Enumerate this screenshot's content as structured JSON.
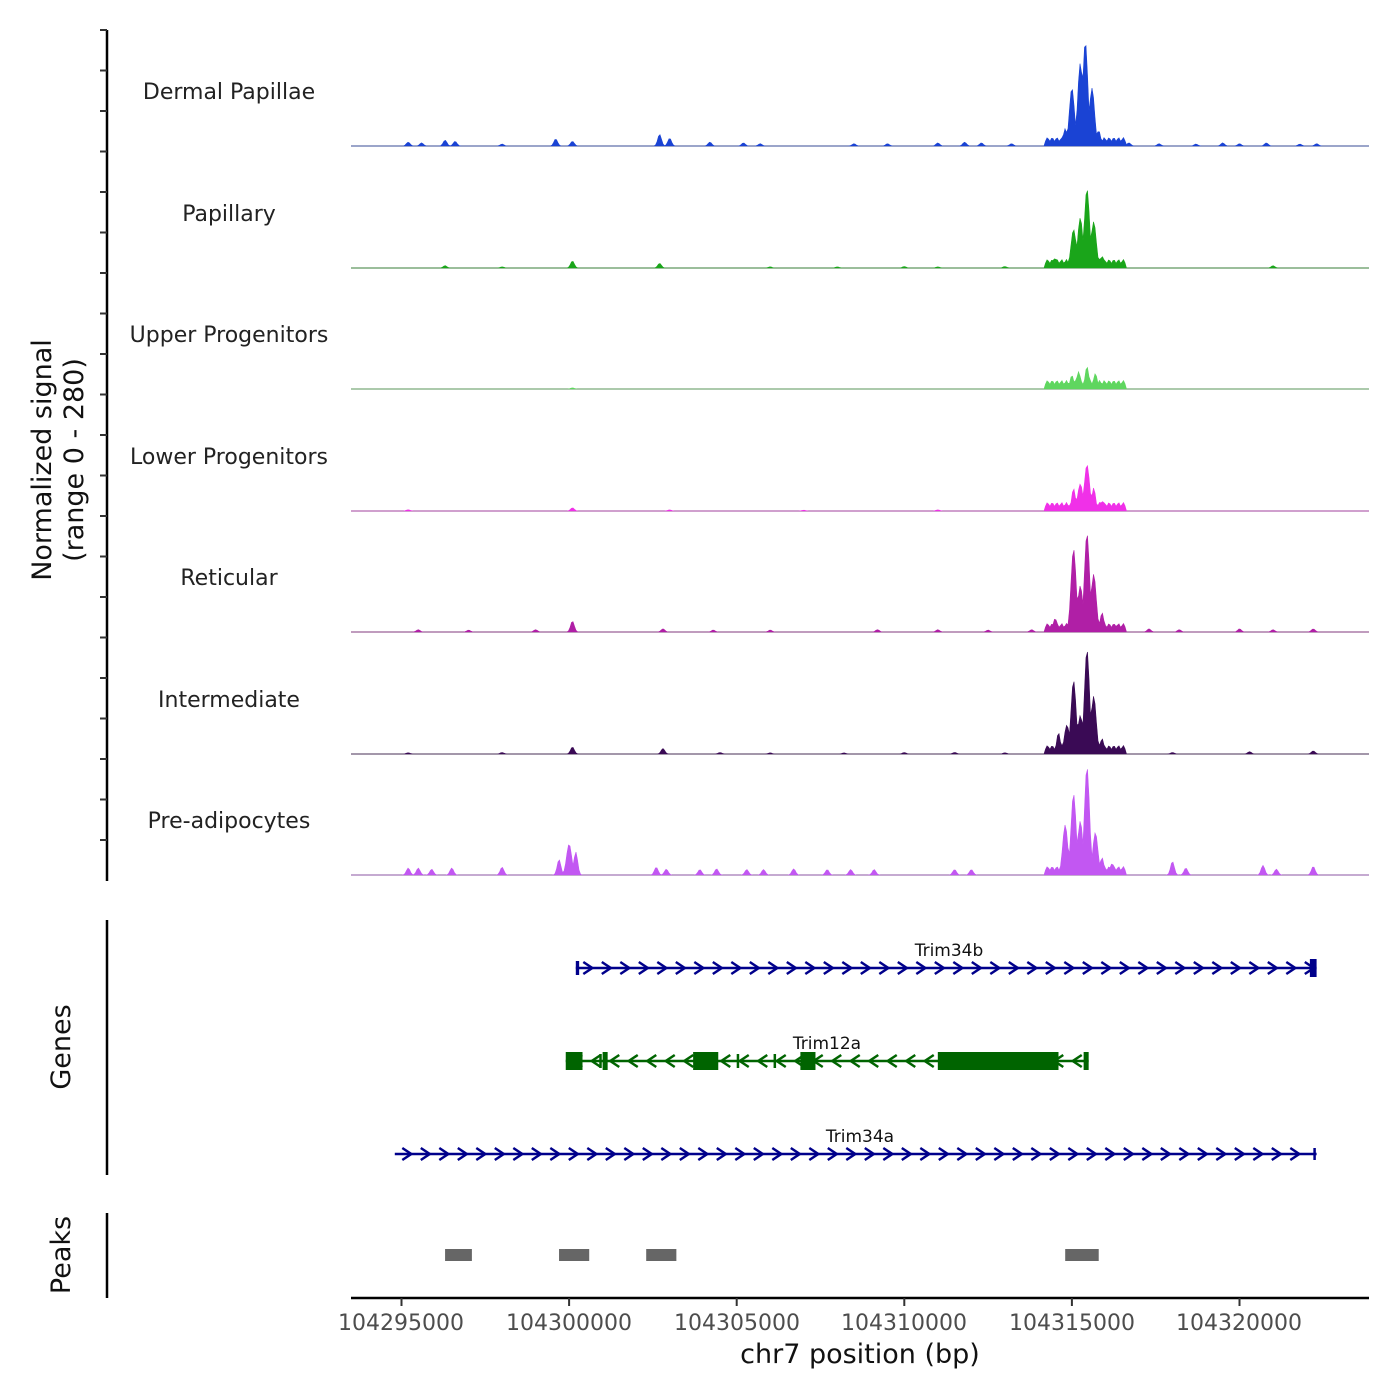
{
  "chart_data": {
    "type": "area",
    "title": "",
    "xlabel": "chr7 position (bp)",
    "ylabel_line1": "Normalized signal",
    "ylabel_line2": "(range 0 - 280)",
    "ylim": [
      0,
      280
    ],
    "xlim": [
      104293500,
      104324000
    ],
    "xticks": [
      104295000,
      104300000,
      104305000,
      104310000,
      104315000,
      104320000
    ],
    "xtick_labels": [
      "104295000",
      "104300000",
      "104305000",
      "104310000",
      "104315000",
      "104320000"
    ],
    "series": [
      {
        "name": "Dermal Papillae",
        "color": "#1a43d4",
        "peaks": [
          [
            104295200,
            10
          ],
          [
            104295600,
            8
          ],
          [
            104296300,
            15
          ],
          [
            104296600,
            12
          ],
          [
            104298000,
            5
          ],
          [
            104299600,
            18
          ],
          [
            104300100,
            12
          ],
          [
            104302700,
            30
          ],
          [
            104303000,
            20
          ],
          [
            104304200,
            10
          ],
          [
            104305200,
            8
          ],
          [
            104305700,
            6
          ],
          [
            104308500,
            6
          ],
          [
            104309500,
            6
          ],
          [
            104311000,
            8
          ],
          [
            104311800,
            10
          ],
          [
            104312300,
            8
          ],
          [
            104313200,
            6
          ],
          [
            104314300,
            10
          ],
          [
            104314800,
            45
          ],
          [
            104315000,
            150
          ],
          [
            104315250,
            215
          ],
          [
            104315400,
            270
          ],
          [
            104315600,
            150
          ],
          [
            104315800,
            40
          ],
          [
            104316100,
            20
          ],
          [
            104316700,
            8
          ],
          [
            104317600,
            6
          ],
          [
            104318700,
            5
          ],
          [
            104319500,
            8
          ],
          [
            104320000,
            6
          ],
          [
            104320800,
            8
          ],
          [
            104321800,
            5
          ],
          [
            104322300,
            6
          ]
        ]
      },
      {
        "name": "Papillary",
        "color": "#1aa51a",
        "peaks": [
          [
            104296300,
            6
          ],
          [
            104298000,
            3
          ],
          [
            104300100,
            18
          ],
          [
            104302700,
            12
          ],
          [
            104306000,
            3
          ],
          [
            104308000,
            3
          ],
          [
            104310000,
            4
          ],
          [
            104311000,
            3
          ],
          [
            104313000,
            4
          ],
          [
            104314500,
            25
          ],
          [
            104315050,
            100
          ],
          [
            104315250,
            130
          ],
          [
            104315450,
            205
          ],
          [
            104315650,
            120
          ],
          [
            104315900,
            30
          ],
          [
            104316300,
            10
          ],
          [
            104321000,
            6
          ]
        ]
      },
      {
        "name": "Upper Progenitors",
        "color": "#5fd65f",
        "peaks": [
          [
            104300100,
            3
          ],
          [
            104314600,
            8
          ],
          [
            104315000,
            35
          ],
          [
            104315200,
            45
          ],
          [
            104315450,
            58
          ],
          [
            104315700,
            40
          ],
          [
            104316000,
            10
          ],
          [
            104316400,
            4
          ]
        ]
      },
      {
        "name": "Lower Progenitors",
        "color": "#f030e8",
        "peaks": [
          [
            104295200,
            3
          ],
          [
            104300100,
            8
          ],
          [
            104303000,
            3
          ],
          [
            104307000,
            2
          ],
          [
            104311000,
            3
          ],
          [
            104314500,
            10
          ],
          [
            104315050,
            58
          ],
          [
            104315250,
            70
          ],
          [
            104315450,
            120
          ],
          [
            104315650,
            60
          ],
          [
            104315900,
            25
          ],
          [
            104316300,
            8
          ]
        ]
      },
      {
        "name": "Reticular",
        "color": "#b01fa6",
        "peaks": [
          [
            104295500,
            6
          ],
          [
            104297000,
            5
          ],
          [
            104299000,
            6
          ],
          [
            104300100,
            28
          ],
          [
            104302800,
            8
          ],
          [
            104304300,
            5
          ],
          [
            104306000,
            5
          ],
          [
            104309200,
            6
          ],
          [
            104311000,
            6
          ],
          [
            104312500,
            5
          ],
          [
            104313800,
            6
          ],
          [
            104314500,
            35
          ],
          [
            104315050,
            215
          ],
          [
            104315250,
            120
          ],
          [
            104315450,
            255
          ],
          [
            104315650,
            150
          ],
          [
            104315900,
            50
          ],
          [
            104316300,
            15
          ],
          [
            104317300,
            8
          ],
          [
            104318200,
            6
          ],
          [
            104320000,
            8
          ],
          [
            104321000,
            6
          ],
          [
            104322200,
            8
          ]
        ]
      },
      {
        "name": "Intermediate",
        "color": "#3a0a55",
        "peaks": [
          [
            104295200,
            3
          ],
          [
            104298000,
            4
          ],
          [
            104300100,
            18
          ],
          [
            104302800,
            14
          ],
          [
            104304500,
            4
          ],
          [
            104306000,
            3
          ],
          [
            104308200,
            3
          ],
          [
            104310000,
            4
          ],
          [
            104311500,
            4
          ],
          [
            104313000,
            3
          ],
          [
            104314600,
            55
          ],
          [
            104314850,
            75
          ],
          [
            104315050,
            190
          ],
          [
            104315250,
            100
          ],
          [
            104315450,
            270
          ],
          [
            104315650,
            150
          ],
          [
            104315900,
            40
          ],
          [
            104316300,
            10
          ],
          [
            104318000,
            4
          ],
          [
            104320300,
            6
          ],
          [
            104322200,
            8
          ]
        ]
      },
      {
        "name": "Pre-adipocytes",
        "color": "#c257f2",
        "peaks": [
          [
            104295200,
            18
          ],
          [
            104295500,
            18
          ],
          [
            104295900,
            15
          ],
          [
            104296500,
            18
          ],
          [
            104298000,
            20
          ],
          [
            104299700,
            40
          ],
          [
            104300000,
            80
          ],
          [
            104300200,
            60
          ],
          [
            104302600,
            20
          ],
          [
            104302900,
            15
          ],
          [
            104303900,
            14
          ],
          [
            104304400,
            16
          ],
          [
            104305300,
            14
          ],
          [
            104305800,
            14
          ],
          [
            104306700,
            16
          ],
          [
            104307700,
            14
          ],
          [
            104308400,
            14
          ],
          [
            104309100,
            14
          ],
          [
            104311500,
            14
          ],
          [
            104312000,
            14
          ],
          [
            104314400,
            20
          ],
          [
            104314800,
            130
          ],
          [
            104315050,
            210
          ],
          [
            104315250,
            140
          ],
          [
            104315450,
            280
          ],
          [
            104315700,
            110
          ],
          [
            104315900,
            45
          ],
          [
            104316200,
            30
          ],
          [
            104318000,
            35
          ],
          [
            104318400,
            18
          ],
          [
            104320700,
            25
          ],
          [
            104321100,
            15
          ],
          [
            104322200,
            22
          ]
        ]
      }
    ],
    "genes": [
      {
        "name": "Trim34b",
        "strand": "+",
        "color": "#00008b",
        "start": 104300200,
        "end": 104322300,
        "exons": [
          [
            104300200,
            104300300
          ],
          [
            104322100,
            104322300
          ]
        ]
      },
      {
        "name": "Trim12a",
        "strand": "-",
        "color": "#006400",
        "start": 104299900,
        "end": 104315500,
        "exons": [
          [
            104299900,
            104300400
          ],
          [
            104300900,
            104300950
          ],
          [
            104301000,
            104301150
          ],
          [
            104303700,
            104304450
          ],
          [
            104305000,
            104305050
          ],
          [
            104306100,
            104306150
          ],
          [
            104306900,
            104307350
          ],
          [
            104311000,
            104314600
          ],
          [
            104315350,
            104315500
          ]
        ]
      },
      {
        "name": "Trim34a",
        "strand": "+",
        "color": "#00008b",
        "start": 104294800,
        "end": 104322300,
        "exons": []
      }
    ],
    "peaks_track": [
      [
        104296300,
        104297100
      ],
      [
        104299700,
        104300600
      ],
      [
        104302300,
        104303200
      ],
      [
        104314800,
        104315800
      ]
    ],
    "panel_labels": {
      "genes": "Genes",
      "peaks": "Peaks"
    }
  }
}
